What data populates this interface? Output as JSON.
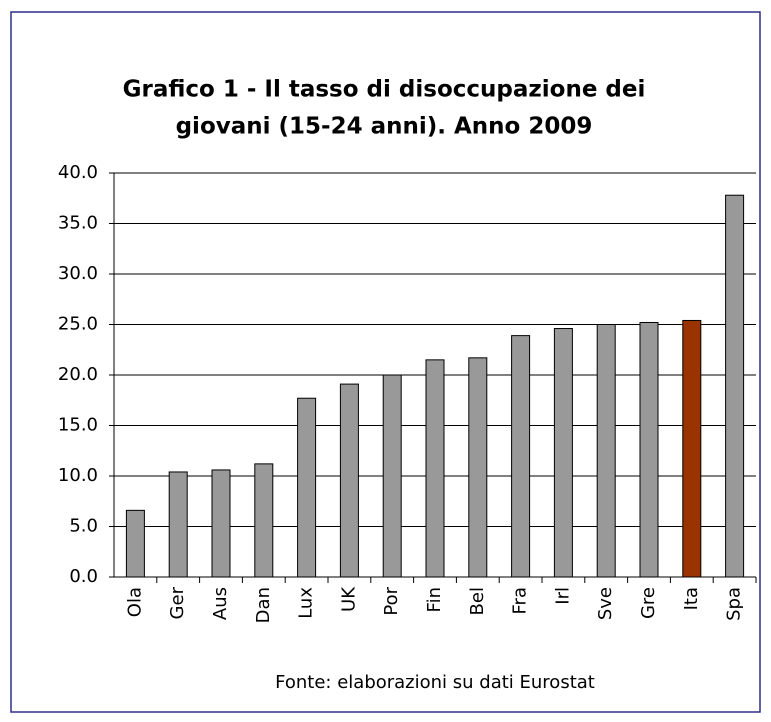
{
  "chart_data": {
    "type": "bar",
    "title": [
      "Grafico 1 - Il tasso di disoccupazione dei",
      "giovani (15-24 anni). Anno 2009"
    ],
    "categories": [
      "Ola",
      "Ger",
      "Aus",
      "Dan",
      "Lux",
      "UK",
      "Por",
      "Fin",
      "Bel",
      "Fra",
      "Irl",
      "Sve",
      "Gre",
      "Ita",
      "Spa"
    ],
    "values": [
      6.6,
      10.4,
      10.6,
      11.2,
      17.7,
      19.1,
      20.0,
      21.5,
      21.7,
      23.9,
      24.6,
      25.0,
      25.2,
      25.4,
      37.8
    ],
    "colors": [
      "#999999",
      "#999999",
      "#999999",
      "#999999",
      "#999999",
      "#999999",
      "#999999",
      "#999999",
      "#999999",
      "#999999",
      "#999999",
      "#999999",
      "#999999",
      "#993300",
      "#999999"
    ],
    "ylim": [
      0,
      40
    ],
    "yticks": [
      {
        "value": 0,
        "label": "0.0"
      },
      {
        "value": 5,
        "label": "5.0"
      },
      {
        "value": 10,
        "label": "10.0"
      },
      {
        "value": 15,
        "label": "15.0"
      },
      {
        "value": 20,
        "label": "20.0"
      },
      {
        "value": 25,
        "label": "25.0"
      },
      {
        "value": 30,
        "label": "30.0"
      },
      {
        "value": 35,
        "label": "35.0"
      },
      {
        "value": 40,
        "label": "40.0"
      }
    ],
    "grid": true,
    "source": "Fonte: elaborazioni su dati Eurostat"
  }
}
